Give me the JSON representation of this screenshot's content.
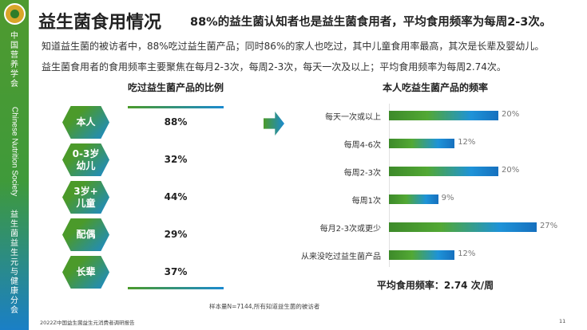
{
  "sidebar": {
    "org": "中国营养学会",
    "org_en": "Chinese Nutrition Society",
    "branch": "益生菌益生元与健康分会"
  },
  "header": {
    "title": "益生菌食用情况",
    "subtitle": "88%的益生菌认知者也是益生菌食用者，平均食用频率为每周2-3次。"
  },
  "desc": [
    "知道益生菌的被访者中，88%吃过益生菌产品；同时86%的家人也吃过，其中儿童食用率最高，其次是长辈及婴幼儿。",
    "益生菌食用者的食用频率主要聚焦在每月2-3次，每周2-3次，每天一次及以上；平均食用频率为每周2.74次。"
  ],
  "left_chart": {
    "title": "吃过益生菌产品的比例",
    "items": [
      {
        "label": "本人",
        "value": "88%"
      },
      {
        "label": "0-3岁\n幼儿",
        "value": "32%"
      },
      {
        "label": "3岁+\n儿童",
        "value": "44%"
      },
      {
        "label": "配偶",
        "value": "29%"
      },
      {
        "label": "长辈",
        "value": "37%"
      }
    ]
  },
  "chart_data": {
    "type": "bar",
    "orientation": "horizontal",
    "title": "本人吃益生菌产品的频率",
    "categories": [
      "每天一次或以上",
      "每周4-6次",
      "每周2-3次",
      "每周1次",
      "每月2-3次或更少",
      "从来没吃过益生菌产品"
    ],
    "values": [
      20,
      12,
      20,
      9,
      27,
      12
    ],
    "value_labels": [
      "20%",
      "12%",
      "20%",
      "9%",
      "27%",
      "12%"
    ],
    "unit": "%"
  },
  "avg": "平均食用频率：2.74 次/周",
  "note": "样本量N=7144,所有知道益生菌的被访者",
  "footer": "2022Z中国益生菌益生元消费者调研报告",
  "page_number": "11",
  "colors": {
    "green": "#4b9a2a",
    "blue": "#1b8ad0"
  }
}
